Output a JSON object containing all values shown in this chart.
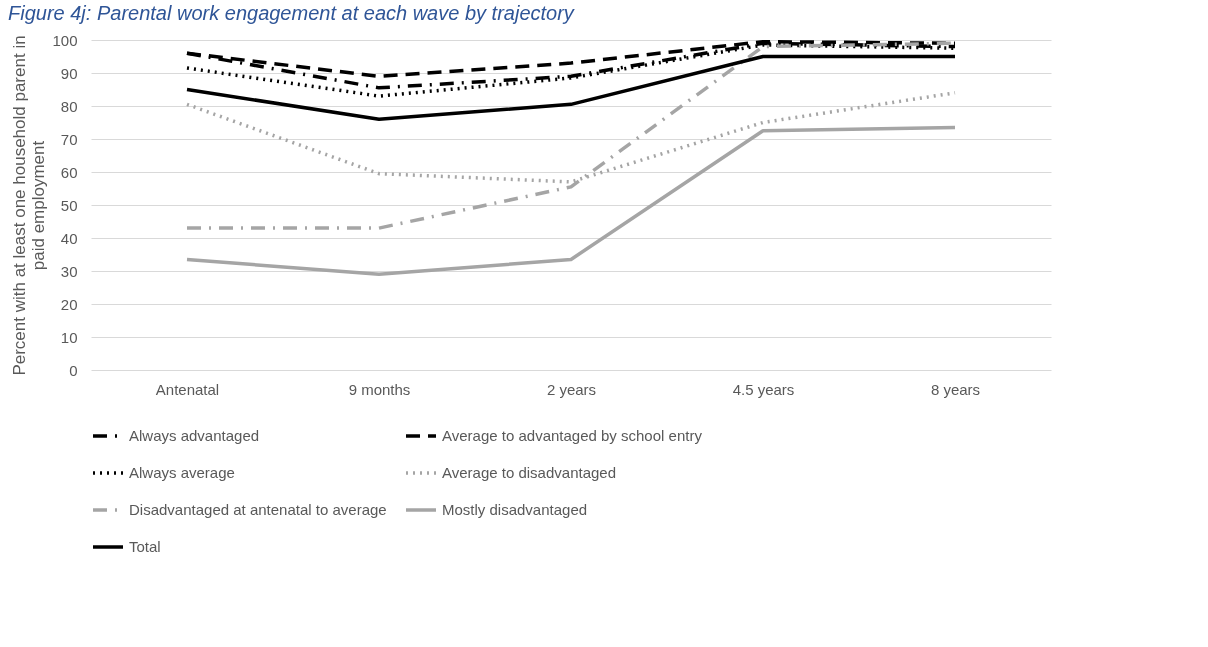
{
  "chart_data": {
    "type": "line",
    "title": "Figure 4j: Parental work engagement at each wave by trajectory",
    "ylabel": "Percent with at least one household parent in paid employment",
    "categories": [
      "Antenatal",
      "9 months",
      "2 years",
      "4.5 years",
      "8 years"
    ],
    "series": [
      {
        "name": "Always advantaged",
        "color": "#000000",
        "line_style": "dashdot",
        "values": [
          96,
          85.5,
          89,
          99,
          98
        ]
      },
      {
        "name": "Average to advantaged by school entry",
        "color": "#000000",
        "line_style": "dashed",
        "values": [
          96,
          89,
          93,
          99.5,
          99
        ]
      },
      {
        "name": "Always average",
        "color": "#000000",
        "line_style": "dotted",
        "values": [
          91.5,
          83,
          88.5,
          98.5,
          97.5
        ]
      },
      {
        "name": "Average to disadvantaged",
        "color": "#a5a5a5",
        "line_style": "dotted",
        "values": [
          80.5,
          59.5,
          57,
          75,
          84
        ]
      },
      {
        "name": "Disadvantaged at antenatal to average",
        "color": "#a5a5a5",
        "line_style": "dashdot",
        "values": [
          43,
          43,
          55.5,
          98,
          99
        ]
      },
      {
        "name": "Mostly disadvantaged",
        "color": "#a5a5a5",
        "line_style": "solid",
        "values": [
          33.5,
          29,
          33.5,
          72.5,
          73.5
        ]
      },
      {
        "name": "Total",
        "color": "#000000",
        "line_style": "solid",
        "values": [
          85,
          76,
          80.5,
          95,
          95
        ]
      }
    ],
    "ylim": [
      0,
      100
    ],
    "yticks": [
      0,
      10,
      20,
      30,
      40,
      50,
      60,
      70,
      80,
      90,
      100
    ],
    "grid": "y",
    "legend": "bottom",
    "marker": "none"
  }
}
